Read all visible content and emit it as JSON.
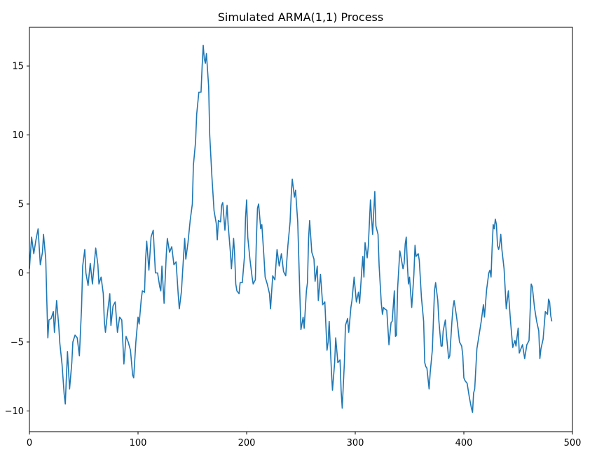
{
  "chart_data": {
    "type": "line",
    "title": "Simulated ARMA(1,1) Process",
    "xlabel": "",
    "ylabel": "",
    "xlim": [
      0,
      500
    ],
    "ylim": [
      -11.5,
      17.8
    ],
    "grid": false,
    "legend": "none",
    "x_ticks": [
      0,
      100,
      200,
      300,
      400,
      500
    ],
    "y_ticks": [
      -10,
      -5,
      0,
      5,
      10,
      15
    ],
    "x_tick_labels": [
      "0",
      "100",
      "200",
      "300",
      "400",
      "500"
    ],
    "y_tick_labels": [
      "−10",
      "−5",
      "0",
      "5",
      "10",
      "15"
    ],
    "series": [
      {
        "color": "#1f77b4",
        "keypoints": [
          [
            0,
            0.3
          ],
          [
            2,
            2.6
          ],
          [
            4,
            1.4
          ],
          [
            6,
            2.4
          ],
          [
            8,
            3.2
          ],
          [
            10,
            0.6
          ],
          [
            12,
            1.5
          ],
          [
            13,
            2.8
          ],
          [
            15,
            1.0
          ],
          [
            16,
            -2.0
          ],
          [
            17,
            -4.7
          ],
          [
            18,
            -3.4
          ],
          [
            20,
            -3.3
          ],
          [
            22,
            -2.8
          ],
          [
            23,
            -4.3
          ],
          [
            25,
            -2.0
          ],
          [
            27,
            -3.8
          ],
          [
            28,
            -5.1
          ],
          [
            30,
            -6.6
          ],
          [
            32,
            -8.8
          ],
          [
            33,
            -9.5
          ],
          [
            34,
            -7.6
          ],
          [
            35,
            -5.7
          ],
          [
            37,
            -8.4
          ],
          [
            39,
            -6.5
          ],
          [
            40,
            -5.0
          ],
          [
            42,
            -4.5
          ],
          [
            44,
            -4.7
          ],
          [
            46,
            -6.0
          ],
          [
            48,
            -2.5
          ],
          [
            49,
            0.5
          ],
          [
            51,
            1.7
          ],
          [
            52,
            0.0
          ],
          [
            54,
            -0.9
          ],
          [
            56,
            0.7
          ],
          [
            58,
            -0.8
          ],
          [
            61,
            1.8
          ],
          [
            63,
            0.6
          ],
          [
            64,
            -0.8
          ],
          [
            66,
            -0.3
          ],
          [
            68,
            -1.5
          ],
          [
            69,
            -3.5
          ],
          [
            70,
            -4.3
          ],
          [
            72,
            -2.8
          ],
          [
            74,
            -1.5
          ],
          [
            75,
            -3.8
          ],
          [
            77,
            -2.4
          ],
          [
            79,
            -2.1
          ],
          [
            81,
            -4.3
          ],
          [
            83,
            -3.2
          ],
          [
            85,
            -3.4
          ],
          [
            87,
            -6.6
          ],
          [
            89,
            -4.6
          ],
          [
            91,
            -5.0
          ],
          [
            93,
            -5.6
          ],
          [
            95,
            -7.4
          ],
          [
            96,
            -7.6
          ],
          [
            98,
            -5.0
          ],
          [
            100,
            -3.2
          ],
          [
            101,
            -3.7
          ],
          [
            103,
            -1.9
          ],
          [
            104,
            -1.3
          ],
          [
            106,
            -1.4
          ],
          [
            107,
            1.0
          ],
          [
            108,
            2.3
          ],
          [
            110,
            0.2
          ],
          [
            112,
            2.6
          ],
          [
            114,
            3.1
          ],
          [
            116,
            0.0
          ],
          [
            118,
            0.0
          ],
          [
            120,
            -1.0
          ],
          [
            121,
            -1.3
          ],
          [
            122,
            0.5
          ],
          [
            124,
            -2.2
          ],
          [
            126,
            1.3
          ],
          [
            127,
            2.5
          ],
          [
            129,
            1.5
          ],
          [
            131,
            1.9
          ],
          [
            133,
            0.6
          ],
          [
            135,
            0.8
          ],
          [
            137,
            -1.6
          ],
          [
            138,
            -2.6
          ],
          [
            140,
            -1.3
          ],
          [
            141,
            0.0
          ],
          [
            143,
            2.5
          ],
          [
            144,
            1.0
          ],
          [
            146,
            2.2
          ],
          [
            148,
            3.8
          ],
          [
            150,
            5.0
          ],
          [
            151,
            7.8
          ],
          [
            153,
            9.5
          ],
          [
            154,
            11.5
          ],
          [
            156,
            13.1
          ],
          [
            158,
            13.1
          ],
          [
            159,
            15.0
          ],
          [
            160,
            16.5
          ],
          [
            161,
            15.5
          ],
          [
            162,
            15.2
          ],
          [
            163,
            15.9
          ],
          [
            165,
            13.5
          ],
          [
            166,
            10.0
          ],
          [
            168,
            7.0
          ],
          [
            170,
            4.5
          ],
          [
            172,
            3.6
          ],
          [
            173,
            2.4
          ],
          [
            174,
            3.8
          ],
          [
            176,
            3.7
          ],
          [
            177,
            4.9
          ],
          [
            178,
            5.1
          ],
          [
            180,
            3.1
          ],
          [
            182,
            4.9
          ],
          [
            183,
            3.5
          ],
          [
            185,
            1.5
          ],
          [
            186,
            0.3
          ],
          [
            188,
            2.5
          ],
          [
            189,
            1.3
          ],
          [
            190,
            -0.8
          ],
          [
            191,
            -1.3
          ],
          [
            193,
            -1.5
          ],
          [
            194,
            -0.7
          ],
          [
            196,
            -0.7
          ],
          [
            198,
            1.2
          ],
          [
            199,
            4.0
          ],
          [
            200,
            5.3
          ],
          [
            201,
            2.6
          ],
          [
            203,
            1.0
          ],
          [
            205,
            -0.3
          ],
          [
            206,
            -0.8
          ],
          [
            208,
            -0.5
          ],
          [
            209,
            2.4
          ],
          [
            210,
            4.7
          ],
          [
            211,
            5.0
          ],
          [
            213,
            3.2
          ],
          [
            214,
            3.5
          ],
          [
            216,
            1.1
          ],
          [
            217,
            -0.3
          ],
          [
            219,
            -0.8
          ],
          [
            221,
            -1.5
          ],
          [
            222,
            -2.6
          ],
          [
            224,
            -0.2
          ],
          [
            226,
            -0.5
          ],
          [
            228,
            1.7
          ],
          [
            230,
            0.5
          ],
          [
            232,
            1.4
          ],
          [
            234,
            0.1
          ],
          [
            236,
            -0.2
          ],
          [
            238,
            2.0
          ],
          [
            240,
            3.7
          ],
          [
            241,
            5.6
          ],
          [
            242,
            6.8
          ],
          [
            244,
            5.5
          ],
          [
            245,
            6.0
          ],
          [
            247,
            3.7
          ],
          [
            249,
            -1.5
          ],
          [
            250,
            -4.1
          ],
          [
            252,
            -3.2
          ],
          [
            253,
            -4.0
          ],
          [
            255,
            -1.3
          ],
          [
            256,
            -0.7
          ],
          [
            257,
            2.5
          ],
          [
            258,
            3.8
          ],
          [
            260,
            1.5
          ],
          [
            262,
            1.0
          ],
          [
            263,
            -0.6
          ],
          [
            265,
            0.5
          ],
          [
            266,
            -2.0
          ],
          [
            268,
            -0.1
          ],
          [
            270,
            -2.3
          ],
          [
            272,
            -2.1
          ],
          [
            274,
            -5.6
          ],
          [
            275,
            -5.0
          ],
          [
            276,
            -3.5
          ],
          [
            278,
            -7.0
          ],
          [
            279,
            -8.5
          ],
          [
            281,
            -6.5
          ],
          [
            282,
            -4.7
          ],
          [
            284,
            -6.5
          ],
          [
            286,
            -6.3
          ],
          [
            287,
            -8.5
          ],
          [
            288,
            -9.8
          ],
          [
            290,
            -6.5
          ],
          [
            291,
            -3.8
          ],
          [
            293,
            -3.3
          ],
          [
            294,
            -4.3
          ],
          [
            296,
            -2.5
          ],
          [
            297,
            -2.0
          ],
          [
            299,
            -0.3
          ],
          [
            301,
            -2.1
          ],
          [
            303,
            -1.4
          ],
          [
            304,
            -2.2
          ],
          [
            306,
            0.2
          ],
          [
            307,
            1.2
          ],
          [
            308,
            -0.3
          ],
          [
            309,
            2.2
          ],
          [
            311,
            1.1
          ],
          [
            312,
            1.9
          ],
          [
            314,
            5.3
          ],
          [
            315,
            4.0
          ],
          [
            316,
            2.8
          ],
          [
            318,
            5.9
          ],
          [
            319,
            3.4
          ],
          [
            321,
            2.8
          ],
          [
            322,
            0.5
          ],
          [
            324,
            -2.2
          ],
          [
            325,
            -3.0
          ],
          [
            326,
            -2.5
          ],
          [
            327,
            -2.6
          ],
          [
            329,
            -2.7
          ],
          [
            331,
            -5.2
          ],
          [
            333,
            -3.6
          ],
          [
            334,
            -3.5
          ],
          [
            336,
            -1.3
          ],
          [
            337,
            -4.6
          ],
          [
            338,
            -4.5
          ],
          [
            339,
            -1.1
          ],
          [
            341,
            1.6
          ],
          [
            342,
            1.2
          ],
          [
            344,
            0.3
          ],
          [
            345,
            0.7
          ],
          [
            346,
            2.1
          ],
          [
            347,
            2.6
          ],
          [
            348,
            0.6
          ],
          [
            349,
            -0.8
          ],
          [
            350,
            -0.3
          ],
          [
            352,
            -2.5
          ],
          [
            354,
            -0.1
          ],
          [
            355,
            2.0
          ],
          [
            356,
            1.2
          ],
          [
            358,
            1.4
          ],
          [
            359,
            0.9
          ],
          [
            361,
            -1.8
          ],
          [
            363,
            -3.5
          ],
          [
            364,
            -6.5
          ],
          [
            365,
            -6.8
          ],
          [
            366,
            -6.9
          ],
          [
            368,
            -8.4
          ],
          [
            369,
            -7.2
          ],
          [
            371,
            -5.6
          ],
          [
            373,
            -1.3
          ],
          [
            374,
            -0.7
          ],
          [
            376,
            -2.0
          ],
          [
            377,
            -3.5
          ],
          [
            379,
            -5.3
          ],
          [
            380,
            -5.3
          ],
          [
            381,
            -4.2
          ],
          [
            383,
            -3.4
          ],
          [
            384,
            -4.5
          ],
          [
            386,
            -6.2
          ],
          [
            387,
            -6.0
          ],
          [
            389,
            -3.5
          ],
          [
            390,
            -2.5
          ],
          [
            391,
            -2.0
          ],
          [
            393,
            -3.0
          ],
          [
            394,
            -3.6
          ],
          [
            396,
            -5.0
          ],
          [
            398,
            -5.3
          ],
          [
            399,
            -6.0
          ],
          [
            400,
            -7.6
          ],
          [
            401,
            -7.8
          ],
          [
            403,
            -8.0
          ],
          [
            405,
            -9.0
          ],
          [
            407,
            -9.8
          ],
          [
            408,
            -10.1
          ],
          [
            409,
            -8.7
          ],
          [
            410,
            -8.4
          ],
          [
            412,
            -5.5
          ],
          [
            414,
            -4.5
          ],
          [
            416,
            -3.5
          ],
          [
            418,
            -2.3
          ],
          [
            419,
            -3.2
          ],
          [
            421,
            -1.2
          ],
          [
            423,
            0.0
          ],
          [
            424,
            0.2
          ],
          [
            425,
            -0.3
          ],
          [
            426,
            1.8
          ],
          [
            427,
            3.5
          ],
          [
            428,
            3.2
          ],
          [
            429,
            3.9
          ],
          [
            430,
            3.5
          ],
          [
            431,
            2.0
          ],
          [
            432,
            1.7
          ],
          [
            433,
            2.0
          ],
          [
            434,
            2.8
          ],
          [
            435,
            1.7
          ],
          [
            437,
            0.3
          ],
          [
            439,
            -2.6
          ],
          [
            441,
            -1.3
          ],
          [
            443,
            -3.5
          ],
          [
            445,
            -5.4
          ],
          [
            447,
            -4.9
          ],
          [
            448,
            -5.3
          ],
          [
            449,
            -4.6
          ],
          [
            450,
            -4.0
          ],
          [
            451,
            -5.8
          ],
          [
            452,
            -5.6
          ],
          [
            454,
            -5.2
          ],
          [
            456,
            -6.2
          ],
          [
            458,
            -5.2
          ],
          [
            460,
            -4.9
          ],
          [
            462,
            -0.8
          ],
          [
            463,
            -1.0
          ],
          [
            465,
            -2.5
          ],
          [
            467,
            -3.5
          ],
          [
            469,
            -4.2
          ],
          [
            470,
            -6.2
          ],
          [
            471,
            -5.5
          ],
          [
            473,
            -4.8
          ],
          [
            475,
            -2.8
          ],
          [
            477,
            -3.0
          ],
          [
            478,
            -1.9
          ],
          [
            479,
            -2.1
          ],
          [
            480,
            -3.1
          ],
          [
            481,
            -3.5
          ]
        ]
      }
    ]
  }
}
